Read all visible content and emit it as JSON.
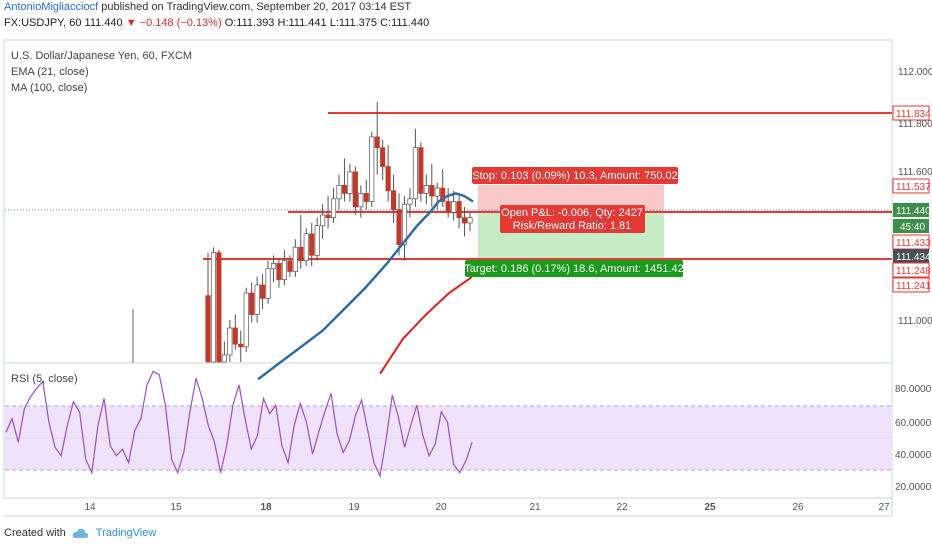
{
  "header": {
    "author": "AntonioMigliacciocf",
    "published_text": " published on TradingView.com, September 20, 2017 03:14 EST"
  },
  "symbol_line": {
    "symbol": "FX:USDJPY, 60",
    "last": "111.440",
    "change": "−0.148 (−0.13%)",
    "open": "O:111.393",
    "high": "H:111.441",
    "low": "L:111.375",
    "close": "C:111.440"
  },
  "legend": {
    "title": "U.S. Dollar/Japanese Yen, 60, FXCM",
    "ema": "EMA (21, close)",
    "ma": "MA (100, close)",
    "rsi": "RSI (5, close)"
  },
  "colors": {
    "up": "#ffffff",
    "down": "#c0392b",
    "wick": "#555555",
    "ema": "#2e6da4",
    "ma": "#e01e1e",
    "hline": "#e53935",
    "rsi": "#9b4fc4",
    "rsi_band": "#f1e2fb",
    "stop_zone": "#f9c8c8",
    "target_zone": "#c7ebc5",
    "stop_label": "#e53935",
    "target_label": "#1a9c1a"
  },
  "price_axis": {
    "ticks": [
      "112.000",
      "111.800",
      "111.600",
      "111.000"
    ],
    "markers": [
      {
        "text": "111.834",
        "kind": "red-outline"
      },
      {
        "text": "111.537",
        "kind": "red-outline"
      },
      {
        "text": "111.440",
        "kind": "green"
      },
      {
        "text": "45:40",
        "kind": "green-small"
      },
      {
        "text": "111.433",
        "kind": "red-outline"
      },
      {
        "text": "111.434",
        "kind": "dark"
      },
      {
        "text": "111.248",
        "kind": "red-outline"
      },
      {
        "text": "111.241",
        "kind": "red-outline"
      }
    ]
  },
  "rsi_axis": {
    "ticks": [
      "80.0000",
      "60.0000",
      "40.0000",
      "20.0000"
    ]
  },
  "time_axis": {
    "ticks": [
      "14",
      "15",
      "18",
      "19",
      "20",
      "21",
      "22",
      "25",
      "26",
      "27"
    ]
  },
  "position": {
    "stop_label": "Stop: 0.103 (0.09%) 10.3, Amount: 750.02",
    "open_pnl": "Open P&L: -0.006, Qty: 2427",
    "risk_reward": "Risk/Reward Ratio: 1.81",
    "target_label": "Target: 0.186 (0.17%) 18.6, Amount: 1451.42"
  },
  "footer": {
    "created_with": "Created with",
    "brand": "TradingView"
  },
  "chart_data": {
    "type": "candlestick",
    "price_ylim": [
      110.9,
      112.1
    ],
    "rsi_ylim": [
      15,
      95
    ],
    "horizontal_lines": [
      111.834,
      111.433,
      111.241
    ],
    "position": {
      "entry": 111.433,
      "stop": 111.537,
      "target": 111.248
    },
    "candles": [
      [
        111.15,
        111.31,
        110.65,
        110.72
      ],
      [
        110.72,
        111.33,
        110.7,
        111.31
      ],
      [
        111.31,
        111.32,
        110.82,
        110.85
      ],
      [
        110.85,
        110.98,
        110.8,
        110.93
      ],
      [
        110.93,
        111.06,
        110.9,
        111.03
      ],
      [
        111.03,
        111.08,
        110.95,
        110.97
      ],
      [
        110.97,
        111.02,
        110.9,
        110.96
      ],
      [
        110.96,
        111.18,
        110.94,
        111.16
      ],
      [
        111.16,
        111.2,
        111.05,
        111.08
      ],
      [
        111.08,
        111.22,
        111.05,
        111.19
      ],
      [
        111.19,
        111.23,
        111.1,
        111.14
      ],
      [
        111.14,
        111.28,
        111.12,
        111.25
      ],
      [
        111.25,
        111.3,
        111.2,
        111.27
      ],
      [
        111.27,
        111.29,
        111.18,
        111.21
      ],
      [
        111.21,
        111.32,
        111.19,
        111.28
      ],
      [
        111.28,
        111.3,
        111.22,
        111.24
      ],
      [
        111.24,
        111.36,
        111.22,
        111.33
      ],
      [
        111.33,
        111.45,
        111.25,
        111.28
      ],
      [
        111.28,
        111.4,
        111.26,
        111.38
      ],
      [
        111.38,
        111.42,
        111.26,
        111.3
      ],
      [
        111.3,
        111.44,
        111.28,
        111.41
      ],
      [
        111.41,
        111.49,
        111.36,
        111.45
      ],
      [
        111.45,
        111.52,
        111.4,
        111.44
      ],
      [
        111.44,
        111.55,
        111.42,
        111.51
      ],
      [
        111.51,
        111.6,
        111.47,
        111.56
      ],
      [
        111.56,
        111.66,
        111.5,
        111.53
      ],
      [
        111.53,
        111.64,
        111.5,
        111.61
      ],
      [
        111.61,
        111.63,
        111.45,
        111.48
      ],
      [
        111.48,
        111.56,
        111.44,
        111.53
      ],
      [
        111.53,
        111.58,
        111.47,
        111.5
      ],
      [
        111.5,
        111.76,
        111.48,
        111.74
      ],
      [
        111.74,
        111.87,
        111.6,
        111.7
      ],
      [
        111.7,
        111.73,
        111.58,
        111.63
      ],
      [
        111.63,
        111.71,
        111.5,
        111.54
      ],
      [
        111.54,
        111.6,
        111.42,
        111.47
      ],
      [
        111.47,
        111.53,
        111.3,
        111.34
      ],
      [
        111.34,
        111.52,
        111.28,
        111.49
      ],
      [
        111.49,
        111.55,
        111.44,
        111.51
      ],
      [
        111.51,
        111.77,
        111.48,
        111.7
      ],
      [
        111.7,
        111.72,
        111.5,
        111.53
      ],
      [
        111.53,
        111.6,
        111.49,
        111.56
      ],
      [
        111.56,
        111.64,
        111.48,
        111.52
      ],
      [
        111.52,
        111.57,
        111.47,
        111.55
      ],
      [
        111.55,
        111.62,
        111.48,
        111.5
      ],
      [
        111.5,
        111.55,
        111.44,
        111.46
      ],
      [
        111.46,
        111.54,
        111.43,
        111.5
      ],
      [
        111.5,
        111.52,
        111.4,
        111.44
      ],
      [
        111.44,
        111.48,
        111.37,
        111.42
      ],
      [
        111.42,
        111.46,
        111.39,
        111.44
      ]
    ],
    "ema21": [
      [
        0.0,
        110.84
      ],
      [
        0.1,
        110.9
      ],
      [
        0.2,
        110.96
      ],
      [
        0.3,
        111.02
      ],
      [
        0.4,
        111.1
      ],
      [
        0.5,
        111.18
      ],
      [
        0.6,
        111.27
      ],
      [
        0.68,
        111.35
      ],
      [
        0.74,
        111.41
      ],
      [
        0.8,
        111.46
      ],
      [
        0.84,
        111.5
      ],
      [
        0.88,
        111.52
      ],
      [
        0.92,
        111.53
      ],
      [
        0.96,
        111.52
      ],
      [
        1.0,
        111.5
      ]
    ],
    "ma100": [
      [
        0.0,
        110.86
      ],
      [
        0.25,
        110.99
      ],
      [
        0.5,
        111.08
      ],
      [
        0.75,
        111.16
      ],
      [
        1.0,
        111.22
      ]
    ],
    "rsi": [
      54,
      62,
      48,
      68,
      75,
      80,
      84,
      60,
      45,
      40,
      58,
      72,
      66,
      38,
      30,
      58,
      74,
      46,
      40,
      44,
      36,
      55,
      62,
      82,
      90,
      88,
      70,
      38,
      30,
      42,
      66,
      86,
      74,
      58,
      48,
      30,
      46,
      70,
      82,
      62,
      44,
      52,
      74,
      65,
      70,
      46,
      36,
      58,
      71,
      60,
      41,
      54,
      66,
      77,
      53,
      42,
      49,
      64,
      73,
      55,
      36,
      28,
      50,
      76,
      63,
      45,
      58,
      70,
      52,
      40,
      47,
      66,
      60,
      35,
      30,
      37,
      48
    ]
  }
}
